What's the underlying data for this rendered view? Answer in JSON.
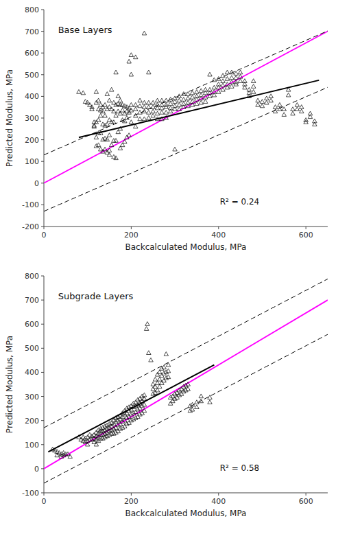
{
  "chart_data": [
    {
      "type": "scatter",
      "title": "Base Layers",
      "xlabel": "Backcalculated Modulus, MPa",
      "ylabel": "Predicted Modulus, MPa",
      "annotation": "R² = 0.24",
      "xlim": [
        0,
        650
      ],
      "xticks": [
        0,
        200,
        400,
        600
      ],
      "ylim": [
        -200,
        800
      ],
      "yticks": [
        -200,
        -100,
        0,
        100,
        200,
        300,
        400,
        500,
        600,
        700,
        800
      ],
      "grid": false,
      "series": [
        {
          "type": "line",
          "color": "magenta",
          "line_style": "solid",
          "x": [
            0,
            650
          ],
          "values": [
            0,
            700.05
          ]
        },
        {
          "type": "line",
          "color": "black",
          "line_style": "dashed",
          "x": [
            0,
            650
          ],
          "values": [
            130,
            702
          ]
        },
        {
          "type": "line",
          "color": "black",
          "line_style": "dashed",
          "x": [
            0,
            650
          ],
          "values": [
            -130,
            442
          ]
        },
        {
          "type": "line",
          "color": "black",
          "line_style": "solid",
          "x": [
            80,
            630
          ],
          "values": [
            210.4,
            474.4
          ]
        },
        {
          "type": "scatter",
          "color": "black",
          "marker": "triangle",
          "x": [
            80,
            90,
            95,
            100,
            105,
            110,
            110,
            115,
            115,
            115,
            120,
            120,
            120,
            120,
            120,
            125,
            125,
            125,
            125,
            125,
            130,
            130,
            130,
            130,
            130,
            135,
            135,
            135,
            135,
            135,
            140,
            140,
            140,
            140,
            140,
            145,
            145,
            145,
            145,
            145,
            150,
            150,
            150,
            150,
            150,
            150,
            155,
            155,
            155,
            155,
            160,
            160,
            160,
            160,
            160,
            165,
            165,
            165,
            165,
            165,
            170,
            170,
            170,
            170,
            175,
            175,
            175,
            175,
            175,
            180,
            180,
            180,
            180,
            185,
            185,
            185,
            185,
            190,
            190,
            190,
            190,
            195,
            195,
            195,
            195,
            200,
            200,
            200,
            200,
            200,
            210,
            210,
            210,
            210,
            210,
            220,
            220,
            220,
            220,
            230,
            230,
            230,
            230,
            230,
            240,
            240,
            240,
            240,
            240,
            250,
            250,
            250,
            250,
            260,
            260,
            260,
            260,
            260,
            270,
            270,
            270,
            270,
            270,
            280,
            280,
            280,
            280,
            280,
            290,
            290,
            290,
            290,
            300,
            300,
            300,
            300,
            300,
            310,
            310,
            310,
            310,
            320,
            320,
            320,
            320,
            330,
            330,
            330,
            330,
            340,
            340,
            340,
            340,
            350,
            350,
            350,
            350,
            360,
            360,
            360,
            360,
            370,
            370,
            370,
            370,
            380,
            380,
            380,
            380,
            390,
            390,
            390,
            390,
            400,
            400,
            400,
            400,
            410,
            410,
            410,
            410,
            420,
            420,
            420,
            420,
            430,
            430,
            430,
            430,
            440,
            440,
            440,
            440,
            450,
            450,
            450,
            460,
            460,
            460,
            470,
            470,
            470,
            480,
            480,
            480,
            490,
            490,
            500,
            500,
            510,
            510,
            520,
            520,
            530,
            530,
            540,
            540,
            550,
            550,
            560,
            560,
            570,
            570,
            580,
            580,
            590,
            590,
            600,
            600,
            610,
            610,
            620,
            620
          ],
          "values": [
            420,
            415,
            375,
            370,
            360,
            350,
            340,
            280,
            265,
            260,
            420,
            370,
            280,
            210,
            170,
            380,
            340,
            290,
            230,
            175,
            360,
            335,
            310,
            230,
            155,
            350,
            330,
            270,
            200,
            145,
            360,
            310,
            265,
            205,
            155,
            410,
            340,
            270,
            200,
            140,
            380,
            350,
            290,
            220,
            150,
            130,
            430,
            340,
            280,
            175,
            370,
            330,
            280,
            195,
            120,
            510,
            360,
            310,
            195,
            115,
            400,
            365,
            330,
            235,
            380,
            360,
            320,
            250,
            160,
            360,
            335,
            290,
            175,
            355,
            320,
            285,
            190,
            350,
            330,
            300,
            210,
            560,
            345,
            325,
            220,
            590,
            500,
            360,
            335,
            280,
            580,
            360,
            340,
            310,
            260,
            380,
            355,
            325,
            295,
            690,
            370,
            350,
            330,
            295,
            510,
            370,
            350,
            325,
            300,
            370,
            350,
            330,
            310,
            380,
            360,
            345,
            320,
            295,
            380,
            360,
            345,
            325,
            295,
            380,
            360,
            350,
            325,
            300,
            385,
            365,
            345,
            330,
            390,
            375,
            355,
            340,
            155,
            400,
            380,
            360,
            340,
            410,
            385,
            365,
            350,
            410,
            390,
            370,
            355,
            415,
            395,
            375,
            360,
            420,
            400,
            385,
            365,
            425,
            405,
            390,
            370,
            430,
            415,
            395,
            375,
            500,
            430,
            415,
            400,
            475,
            440,
            420,
            405,
            480,
            455,
            440,
            420,
            495,
            470,
            450,
            430,
            510,
            480,
            455,
            440,
            510,
            485,
            465,
            445,
            505,
            485,
            465,
            455,
            510,
            490,
            470,
            470,
            455,
            440,
            430,
            415,
            400,
            470,
            445,
            420,
            380,
            360,
            375,
            355,
            390,
            370,
            400,
            380,
            350,
            330,
            360,
            340,
            340,
            315,
            430,
            405,
            340,
            320,
            360,
            340,
            350,
            330,
            290,
            280,
            320,
            305,
            285,
            270
          ]
        }
      ]
    },
    {
      "type": "scatter",
      "title": "Subgrade Layers",
      "xlabel": "Backcalculated Modulus, MPa",
      "ylabel": "Predicted Modulus, MPa",
      "annotation": "R² = 0.58",
      "xlim": [
        0,
        650
      ],
      "xticks": [
        0,
        200,
        400,
        600
      ],
      "ylim": [
        -100,
        800
      ],
      "yticks": [
        -100,
        0,
        100,
        200,
        300,
        400,
        500,
        600,
        700,
        800
      ],
      "grid": false,
      "series": [
        {
          "type": "line",
          "color": "magenta",
          "line_style": "solid",
          "x": [
            0,
            650
          ],
          "values": [
            0,
            700.05
          ]
        },
        {
          "type": "line",
          "color": "black",
          "line_style": "dashed",
          "x": [
            0,
            650
          ],
          "values": [
            170,
            787.5
          ]
        },
        {
          "type": "line",
          "color": "black",
          "line_style": "dashed",
          "x": [
            0,
            650
          ],
          "values": [
            -60,
            557.5
          ]
        },
        {
          "type": "line",
          "color": "black",
          "line_style": "solid",
          "x": [
            10,
            390
          ],
          "values": [
            69.5,
            430.5
          ]
        },
        {
          "type": "scatter",
          "color": "black",
          "marker": "triangle",
          "x": [
            20,
            25,
            30,
            30,
            35,
            40,
            40,
            45,
            45,
            50,
            55,
            60,
            80,
            85,
            90,
            90,
            95,
            95,
            100,
            100,
            100,
            105,
            105,
            110,
            110,
            115,
            115,
            115,
            120,
            120,
            120,
            120,
            125,
            125,
            125,
            125,
            130,
            130,
            130,
            130,
            135,
            135,
            135,
            135,
            140,
            140,
            140,
            140,
            145,
            145,
            145,
            145,
            150,
            150,
            150,
            150,
            155,
            155,
            155,
            155,
            160,
            160,
            160,
            160,
            165,
            165,
            165,
            165,
            170,
            170,
            170,
            170,
            175,
            175,
            175,
            175,
            180,
            180,
            180,
            180,
            185,
            185,
            185,
            185,
            190,
            190,
            190,
            190,
            195,
            195,
            195,
            195,
            200,
            200,
            200,
            200,
            205,
            205,
            205,
            205,
            210,
            210,
            210,
            210,
            215,
            215,
            215,
            215,
            220,
            220,
            220,
            220,
            225,
            225,
            225,
            225,
            230,
            230,
            230,
            230,
            235,
            237,
            240,
            245,
            250,
            250,
            250,
            255,
            255,
            255,
            260,
            260,
            260,
            265,
            265,
            265,
            270,
            270,
            270,
            275,
            275,
            275,
            280,
            280,
            280,
            285,
            285,
            285,
            290,
            290,
            295,
            295,
            300,
            300,
            305,
            305,
            310,
            310,
            315,
            315,
            320,
            320,
            325,
            325,
            330,
            330,
            335,
            335,
            340,
            340,
            350,
            350,
            360,
            360,
            380,
            380
          ],
          "values": [
            80,
            75,
            70,
            55,
            65,
            60,
            50,
            65,
            55,
            60,
            60,
            50,
            130,
            120,
            130,
            115,
            125,
            110,
            130,
            115,
            100,
            140,
            120,
            135,
            120,
            140,
            125,
            110,
            150,
            135,
            120,
            100,
            160,
            145,
            130,
            115,
            165,
            155,
            140,
            125,
            170,
            155,
            140,
            125,
            175,
            160,
            145,
            130,
            180,
            165,
            150,
            135,
            185,
            170,
            155,
            140,
            190,
            175,
            160,
            145,
            200,
            185,
            165,
            145,
            210,
            195,
            170,
            150,
            215,
            200,
            180,
            155,
            220,
            205,
            185,
            165,
            230,
            215,
            195,
            170,
            240,
            225,
            200,
            175,
            250,
            230,
            210,
            185,
            255,
            240,
            215,
            190,
            260,
            245,
            225,
            200,
            270,
            255,
            230,
            205,
            275,
            260,
            235,
            210,
            285,
            265,
            245,
            215,
            290,
            270,
            250,
            225,
            300,
            280,
            260,
            230,
            305,
            290,
            265,
            240,
            580,
            600,
            480,
            450,
            350,
            330,
            310,
            370,
            340,
            315,
            390,
            355,
            325,
            400,
            370,
            340,
            415,
            385,
            355,
            420,
            395,
            365,
            475,
            400,
            375,
            430,
            405,
            380,
            295,
            270,
            300,
            280,
            310,
            290,
            315,
            295,
            325,
            305,
            330,
            310,
            340,
            320,
            345,
            325,
            350,
            330,
            260,
            240,
            265,
            245,
            275,
            255,
            300,
            280,
            295,
            275
          ]
        }
      ]
    }
  ]
}
